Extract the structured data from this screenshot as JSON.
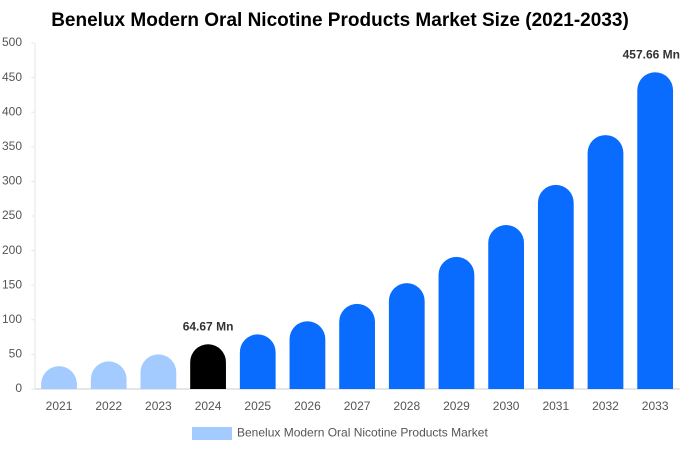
{
  "chart_data": {
    "type": "bar",
    "title": "Benelux Modern Oral Nicotine Products Market Size (2021-2033)",
    "categories": [
      "2021",
      "2022",
      "2023",
      "2024",
      "2025",
      "2026",
      "2027",
      "2028",
      "2029",
      "2030",
      "2031",
      "2032",
      "2033"
    ],
    "series": [
      {
        "name": "Benelux Modern Oral Nicotine Products Market",
        "color": "#a3cbff",
        "colors": [
          "#a3cbff",
          "#a3cbff",
          "#a3cbff",
          "#000000",
          "#0a6cff",
          "#0a6cff",
          "#0a6cff",
          "#0a6cff",
          "#0a6cff",
          "#0a6cff",
          "#0a6cff",
          "#0a6cff",
          "#0a6cff"
        ],
        "values": [
          33,
          40,
          50,
          64.67,
          79,
          98,
          123,
          153,
          191,
          237,
          295,
          367,
          457.66
        ],
        "value_labels": [
          null,
          null,
          null,
          "64.67 Mn",
          null,
          null,
          null,
          null,
          null,
          null,
          null,
          null,
          "457.66 Mn"
        ]
      }
    ],
    "ylim": [
      0,
      500
    ],
    "yticks": [
      0,
      50,
      100,
      150,
      200,
      250,
      300,
      350,
      400,
      450,
      500
    ],
    "grid": false,
    "legend": "bottom"
  }
}
